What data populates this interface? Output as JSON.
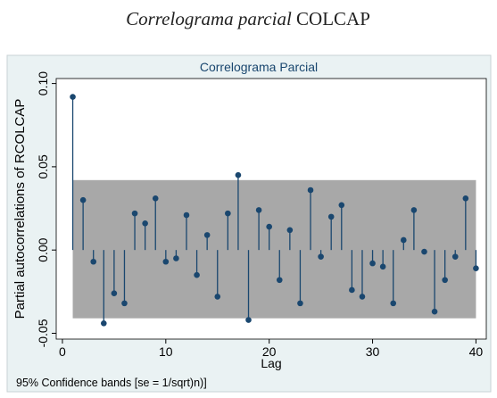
{
  "chart_data": {
    "type": "stem",
    "caption": [
      "Correlograma parcial",
      "COLCAP"
    ],
    "title": "Correlograma Parcial",
    "y_label": "Partial autocorrelations of RCOLCAP",
    "x_label": "Lag",
    "note": "95% Confidence bands [se = 1/sqrt)n)]",
    "color": "#1a476f",
    "band_color": "#a8a8a8",
    "ci_band": {
      "lower": -0.041,
      "upper": 0.042
    },
    "x": [
      1,
      2,
      3,
      4,
      5,
      6,
      7,
      8,
      9,
      10,
      11,
      12,
      13,
      14,
      15,
      16,
      17,
      18,
      19,
      20,
      21,
      22,
      23,
      24,
      25,
      26,
      27,
      28,
      29,
      30,
      31,
      32,
      33,
      34,
      35,
      36,
      37,
      38,
      39,
      40
    ],
    "values": [
      0.092,
      0.03,
      -0.007,
      -0.044,
      -0.026,
      -0.032,
      0.022,
      0.016,
      0.031,
      -0.007,
      -0.005,
      0.021,
      -0.015,
      0.009,
      -0.028,
      0.022,
      0.045,
      -0.042,
      0.024,
      0.014,
      -0.018,
      0.012,
      -0.032,
      0.036,
      -0.004,
      0.02,
      0.027,
      -0.024,
      -0.028,
      -0.008,
      -0.01,
      -0.032,
      0.006,
      0.024,
      -0.001,
      -0.037,
      -0.018,
      -0.004,
      0.031,
      -0.011
    ],
    "xlim": [
      -0.6,
      41
    ],
    "ylim": [
      -0.0535,
      0.103
    ],
    "xticks": [
      0,
      10,
      20,
      30,
      40
    ],
    "yticks": [
      {
        "value": -0.05,
        "label": "-0.05"
      },
      {
        "value": 0,
        "label": "0.00"
      },
      {
        "value": 0.05,
        "label": "0.05"
      },
      {
        "value": 0.1,
        "label": "0.10"
      }
    ]
  }
}
